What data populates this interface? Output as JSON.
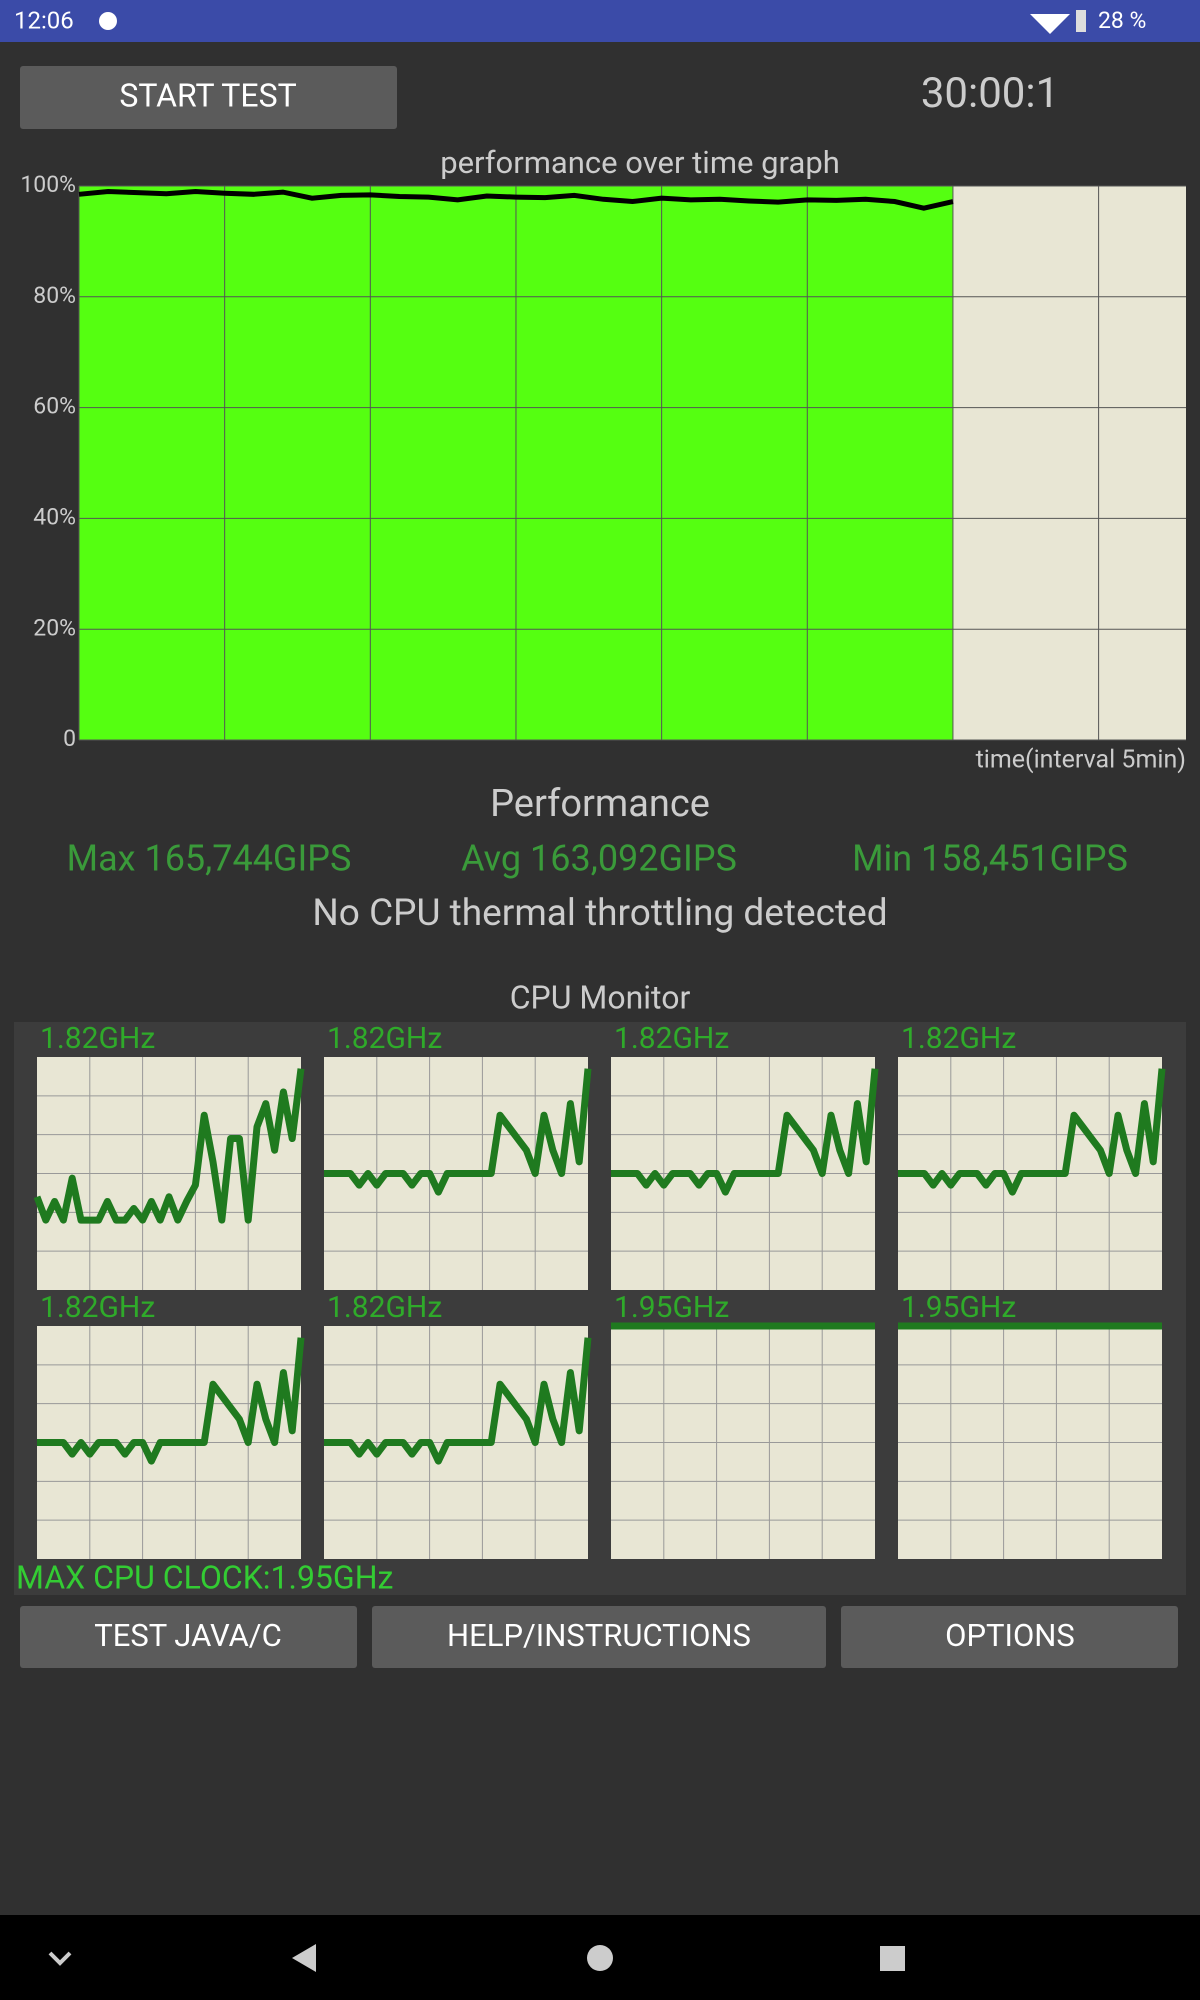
{
  "status_bar": {
    "time": "12:06",
    "battery": "28 %"
  },
  "start_button": "START TEST",
  "timer": "30:00:1",
  "chart_data": {
    "type": "line",
    "title": "performance over time graph",
    "x_label": "time(interval 5min)",
    "x": [
      0,
      1,
      2,
      3,
      4,
      5,
      6,
      7,
      8,
      9,
      10,
      11,
      12,
      13,
      14,
      15,
      16,
      17,
      18,
      19,
      20,
      21,
      22,
      23,
      24,
      25,
      26,
      27,
      28,
      29,
      30
    ],
    "series": [
      {
        "color": "#000000",
        "values": [
          98.5,
          99,
          98.8,
          98.6,
          99,
          98.7,
          98.5,
          98.9,
          97.8,
          98.3,
          98.4,
          98.1,
          98,
          97.5,
          98.2,
          98,
          97.9,
          98.3,
          97.6,
          97.2,
          97.8,
          97.5,
          97.6,
          97.3,
          97.1,
          97.5,
          97.4,
          97.6,
          97.2,
          96,
          97.2
        ]
      }
    ],
    "xlim": [
      0,
      38
    ],
    "xticks": [
      0,
      5,
      10,
      15,
      20,
      25,
      30,
      35
    ],
    "ylim": [
      0,
      100
    ],
    "yticks": [
      0,
      {
        "value": 20,
        "label": "20%"
      },
      {
        "value": 40,
        "label": "40%"
      },
      {
        "value": 60,
        "label": "60%"
      },
      {
        "value": 80,
        "label": "80%"
      },
      {
        "value": 100,
        "label": "100%"
      }
    ],
    "grid": true
  },
  "performance": {
    "title": "Performance",
    "max": "Max 165,744GIPS",
    "avg": "Avg 163,092GIPS",
    "min": "Min 158,451GIPS",
    "status": "No CPU thermal throttling detected"
  },
  "cpu_monitor": {
    "title": "CPU Monitor",
    "ylim": [
      0,
      100
    ],
    "max_clock": "MAX CPU CLOCK:1.95GHz",
    "cores": [
      {
        "label": "1.82GHz",
        "values": [
          40,
          30,
          38,
          30,
          48,
          30,
          30,
          30,
          38,
          30,
          30,
          35,
          30,
          38,
          30,
          40,
          30,
          38,
          45,
          75,
          55,
          30,
          65,
          65,
          30,
          70,
          80,
          60,
          85,
          65,
          95
        ]
      },
      {
        "label": "1.82GHz",
        "values": [
          50,
          50,
          50,
          50,
          45,
          50,
          45,
          50,
          50,
          50,
          45,
          50,
          50,
          42,
          50,
          50,
          50,
          50,
          50,
          50,
          75,
          70,
          65,
          60,
          50,
          75,
          60,
          50,
          80,
          55,
          95
        ]
      },
      {
        "label": "1.82GHz",
        "values": [
          50,
          50,
          50,
          50,
          45,
          50,
          45,
          50,
          50,
          50,
          45,
          50,
          50,
          42,
          50,
          50,
          50,
          50,
          50,
          50,
          75,
          70,
          65,
          60,
          50,
          75,
          60,
          50,
          80,
          55,
          95
        ]
      },
      {
        "label": "1.82GHz",
        "values": [
          50,
          50,
          50,
          50,
          45,
          50,
          45,
          50,
          50,
          50,
          45,
          50,
          50,
          42,
          50,
          50,
          50,
          50,
          50,
          50,
          75,
          70,
          65,
          60,
          50,
          75,
          60,
          50,
          80,
          55,
          95
        ]
      },
      {
        "label": "1.82GHz",
        "values": [
          50,
          50,
          50,
          50,
          45,
          50,
          45,
          50,
          50,
          50,
          45,
          50,
          50,
          42,
          50,
          50,
          50,
          50,
          50,
          50,
          75,
          70,
          65,
          60,
          50,
          75,
          60,
          50,
          80,
          55,
          95
        ]
      },
      {
        "label": "1.82GHz",
        "values": [
          50,
          50,
          50,
          50,
          45,
          50,
          45,
          50,
          50,
          50,
          45,
          50,
          50,
          42,
          50,
          50,
          50,
          50,
          50,
          50,
          75,
          70,
          65,
          60,
          50,
          75,
          60,
          50,
          80,
          55,
          95
        ]
      },
      {
        "label": "1.95GHz",
        "values": [
          100,
          100,
          100,
          100,
          100,
          100,
          100,
          100,
          100,
          100,
          100,
          100,
          100,
          100,
          100,
          100,
          100,
          100,
          100,
          100,
          100,
          100,
          100,
          100,
          100,
          100,
          100,
          100,
          100,
          100,
          100
        ]
      },
      {
        "label": "1.95GHz",
        "values": [
          100,
          100,
          100,
          100,
          100,
          100,
          100,
          100,
          100,
          100,
          100,
          100,
          100,
          100,
          100,
          100,
          100,
          100,
          100,
          100,
          100,
          100,
          100,
          100,
          100,
          100,
          100,
          100,
          100,
          100,
          100
        ]
      }
    ]
  },
  "buttons": [
    "TEST JAVA/C",
    "HELP/INSTRUCTIONS",
    "OPTIONS"
  ]
}
